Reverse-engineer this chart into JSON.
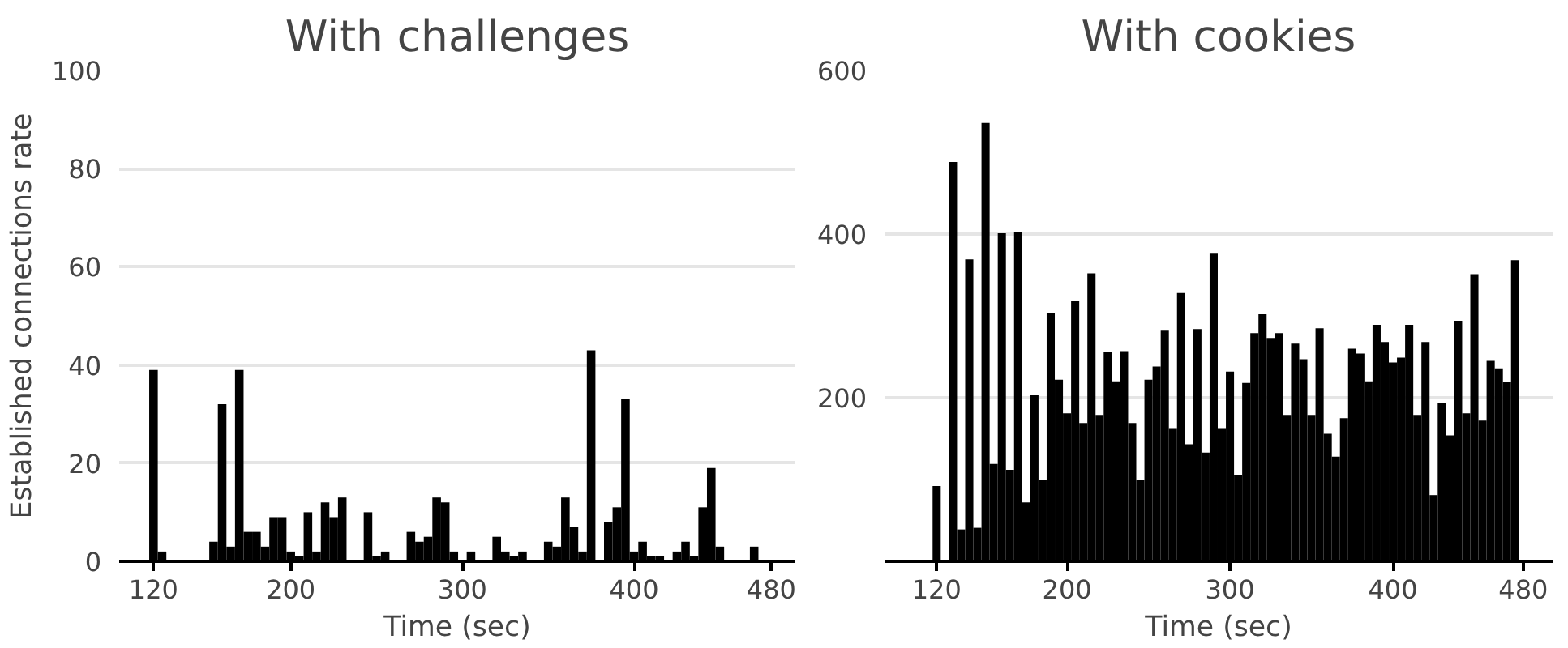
{
  "chart_data": [
    {
      "type": "histogram",
      "title": "With challenges",
      "xlabel": "Time (sec)",
      "ylabel": "Established connections rate",
      "color": "#000000",
      "grid": "y",
      "xlim": [
        100,
        494
      ],
      "ylim": [
        0,
        100
      ],
      "xticks": [
        120,
        200,
        300,
        400,
        480
      ],
      "yticks": [
        0,
        20,
        40,
        60,
        80,
        100
      ],
      "bins": [
        117.5,
        122.5,
        127.5,
        132.5,
        137.5,
        142.5,
        147.5,
        152.5,
        157.5,
        162.5,
        167.5,
        172.5,
        177.5,
        182.5,
        187.5,
        192.5,
        197.5,
        202.5,
        207.5,
        212.5,
        217.5,
        222.5,
        227.5,
        232.5,
        237.5,
        242.5,
        247.5,
        252.5,
        257.5,
        262.5,
        267.5,
        272.5,
        277.5,
        282.5,
        287.5,
        292.5,
        297.5,
        302.5,
        307.5,
        312.5,
        317.5,
        322.5,
        327.5,
        332.5,
        337.5,
        342.5,
        347.5,
        352.5,
        357.5,
        362.5,
        367.5,
        372.5,
        377.5,
        382.5,
        387.5,
        392.5,
        397.5,
        402.5,
        407.5,
        412.5,
        417.5,
        422.5,
        427.5,
        432.5,
        437.5,
        442.5,
        447.5,
        452.5,
        457.5,
        462.5,
        467.5,
        472.5,
        477.5
      ],
      "values": [
        39,
        2,
        0,
        0,
        0,
        0,
        0,
        4,
        32,
        3,
        39,
        6,
        6,
        3,
        9,
        9,
        2,
        1,
        10,
        2,
        12,
        9,
        13,
        0,
        0,
        10,
        1,
        2,
        0,
        0,
        6,
        4,
        5,
        13,
        12,
        2,
        0,
        2,
        0,
        0,
        5,
        2,
        1,
        2,
        0,
        0,
        4,
        3,
        13,
        7,
        2,
        43,
        0,
        8,
        11,
        33,
        2,
        4,
        1,
        1,
        0,
        2,
        4,
        1,
        11,
        19,
        3,
        0,
        0,
        0,
        3,
        0
      ]
    },
    {
      "type": "histogram",
      "title": "With cookies",
      "xlabel": "Time (sec)",
      "color": "#000000",
      "grid": "y",
      "xlim": [
        88,
        498
      ],
      "ylim": [
        0,
        600
      ],
      "xticks": [
        120,
        200,
        300,
        400,
        480
      ],
      "yticks": [
        200,
        400,
        600
      ],
      "bins": [
        117.5,
        122.5,
        127.5,
        132.5,
        137.5,
        142.5,
        147.5,
        152.5,
        157.5,
        162.5,
        167.5,
        172.5,
        177.5,
        182.5,
        187.5,
        192.5,
        197.5,
        202.5,
        207.5,
        212.5,
        217.5,
        222.5,
        227.5,
        232.5,
        237.5,
        242.5,
        247.5,
        252.5,
        257.5,
        262.5,
        267.5,
        272.5,
        277.5,
        282.5,
        287.5,
        292.5,
        297.5,
        302.5,
        307.5,
        312.5,
        317.5,
        322.5,
        327.5,
        332.5,
        337.5,
        342.5,
        347.5,
        352.5,
        357.5,
        362.5,
        367.5,
        372.5,
        377.5,
        382.5,
        387.5,
        392.5,
        397.5,
        402.5,
        407.5,
        412.5,
        417.5,
        422.5,
        427.5,
        432.5,
        437.5,
        442.5,
        447.5,
        452.5,
        457.5,
        462.5,
        467.5,
        472.5,
        477.5
      ],
      "values": [
        92,
        0,
        488,
        39,
        369,
        41,
        536,
        119,
        401,
        112,
        403,
        72,
        203,
        99,
        303,
        222,
        181,
        318,
        169,
        352,
        179,
        256,
        220,
        257,
        169,
        99,
        222,
        238,
        282,
        162,
        328,
        143,
        284,
        133,
        377,
        162,
        232,
        106,
        218,
        279,
        302,
        273,
        279,
        179,
        266,
        247,
        179,
        285,
        156,
        128,
        175,
        260,
        254,
        220,
        289,
        268,
        243,
        249,
        289,
        179,
        268,
        81,
        194,
        154,
        294,
        181,
        351,
        172,
        245,
        236,
        219,
        368
      ]
    }
  ]
}
